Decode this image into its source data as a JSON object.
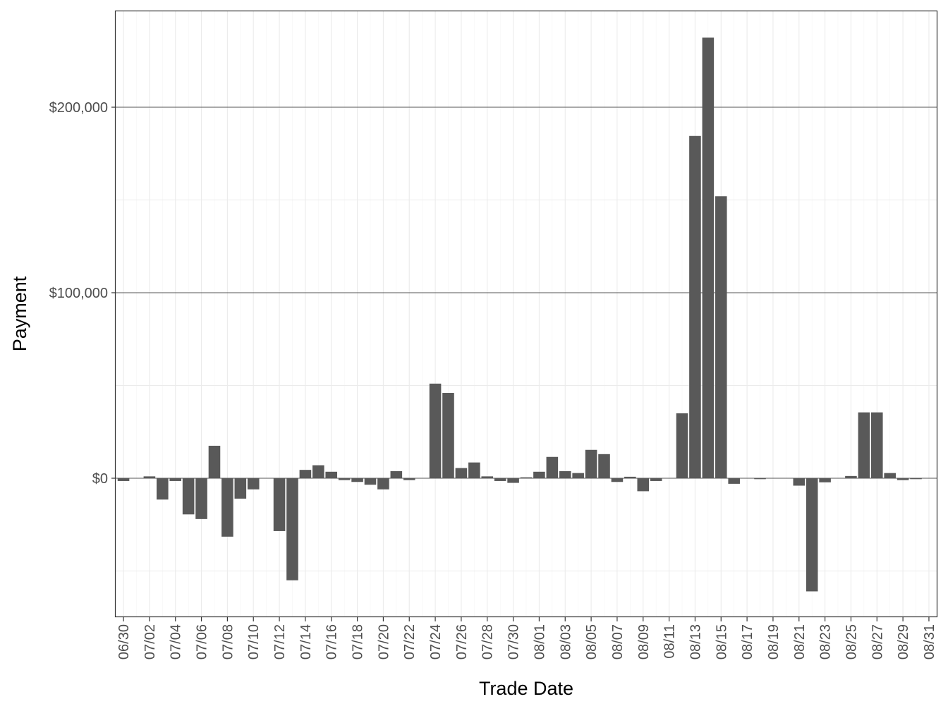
{
  "chart_data": {
    "type": "bar",
    "title": "",
    "xlabel": "Trade Date",
    "ylabel": "Payment",
    "ylim": [
      -75000,
      250000
    ],
    "y_ticks": [
      0,
      100000,
      200000
    ],
    "y_tick_labels": [
      "$0",
      "$100,000",
      "$200,000"
    ],
    "grid": true,
    "x_ticks": [
      "06/30",
      "07/02",
      "07/04",
      "07/06",
      "07/08",
      "07/10",
      "07/12",
      "07/14",
      "07/16",
      "07/18",
      "07/20",
      "07/22",
      "07/24",
      "07/26",
      "07/28",
      "07/30",
      "08/01",
      "08/03",
      "08/05",
      "08/07",
      "08/09",
      "08/11",
      "08/13",
      "08/15",
      "08/17",
      "08/19",
      "08/21",
      "08/23",
      "08/25",
      "08/27",
      "08/29",
      "08/31"
    ],
    "categories": [
      "06/30",
      "07/01",
      "07/02",
      "07/03",
      "07/04",
      "07/05",
      "07/06",
      "07/07",
      "07/08",
      "07/09",
      "07/10",
      "07/11",
      "07/12",
      "07/13",
      "07/14",
      "07/15",
      "07/16",
      "07/17",
      "07/18",
      "07/19",
      "07/20",
      "07/21",
      "07/22",
      "07/23",
      "07/24",
      "07/25",
      "07/26",
      "07/27",
      "07/28",
      "07/29",
      "07/30",
      "07/31",
      "08/01",
      "08/02",
      "08/03",
      "08/04",
      "08/05",
      "08/06",
      "08/07",
      "08/08",
      "08/09",
      "08/10",
      "08/11",
      "08/12",
      "08/13",
      "08/14",
      "08/15",
      "08/16",
      "08/17",
      "08/18",
      "08/19",
      "08/20",
      "08/21",
      "08/22",
      "08/23",
      "08/24",
      "08/25",
      "08/26",
      "08/27",
      "08/28",
      "08/29",
      "08/30",
      "08/31"
    ],
    "values": [
      -1500,
      0,
      1000,
      -11500,
      -1500,
      -19500,
      -22000,
      17500,
      -31500,
      -11000,
      -6000,
      0,
      -28500,
      -55000,
      4500,
      7000,
      3500,
      -1000,
      -2000,
      -3500,
      -6000,
      3800,
      -1000,
      0,
      51000,
      46000,
      5500,
      8500,
      1000,
      -1500,
      -2500,
      500,
      3500,
      11500,
      3800,
      2800,
      15300,
      13000,
      -2000,
      800,
      -7000,
      -1500,
      0,
      35000,
      184500,
      237500,
      152000,
      -3000,
      0,
      -500,
      0,
      0,
      -4000,
      -61000,
      -2200,
      0,
      1200,
      35500,
      35500,
      2800,
      -1000,
      -500,
      0
    ],
    "colors": {
      "bar": "#595959",
      "panel_border": "#333333",
      "major_grid": "#ebebeb",
      "minor_grid": "#f5f5f5"
    }
  }
}
